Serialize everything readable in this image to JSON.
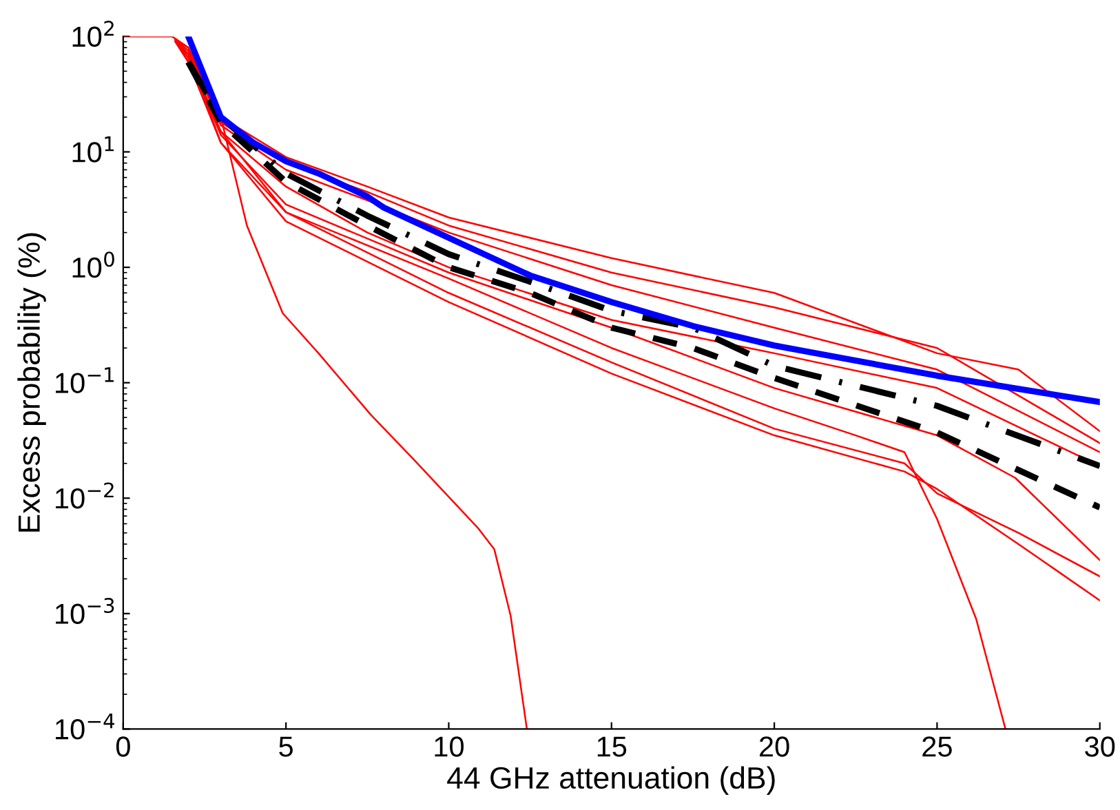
{
  "chart_data": {
    "type": "line",
    "xlabel": "44 GHz attenuation (dB)",
    "ylabel": "Excess probability (%)",
    "log": "y",
    "grid": false,
    "xlim": [
      0,
      30
    ],
    "xticks": [
      0,
      5,
      10,
      15,
      20,
      25,
      30
    ],
    "ylim": [
      0.0001,
      100
    ],
    "yticks": [
      {
        "value": 0.0001,
        "label": "10$^{−4}$"
      },
      {
        "value": 0.001,
        "label": "10$^{−3}$"
      },
      {
        "value": 0.01,
        "label": "10$^{−2}$"
      },
      {
        "value": 0.1,
        "label": "10$^{−1}$"
      },
      {
        "value": 1,
        "label": "10$^{0}$"
      },
      {
        "value": 10,
        "label": "10$^{1}$"
      },
      {
        "value": 100,
        "label": "10$^{2}$"
      }
    ],
    "series": [
      {
        "color": "#ff0000",
        "line_style": "solid",
        "x": [
          0,
          1.5,
          2,
          3,
          5,
          7.5,
          10,
          15,
          20,
          25,
          27.5,
          30
        ],
        "values": [
          100,
          100,
          80,
          20,
          9,
          5,
          2.7,
          1.2,
          0.6,
          0.18,
          0.13,
          0.038
        ]
      },
      {
        "color": "#ff0000",
        "line_style": "solid",
        "x": [
          1.6,
          2,
          3,
          5,
          7.5,
          10,
          15,
          20,
          25,
          30
        ],
        "values": [
          95,
          80,
          18,
          8,
          4.5,
          2.3,
          0.9,
          0.45,
          0.2,
          0.03
        ]
      },
      {
        "color": "#ff0000",
        "line_style": "solid",
        "x": [
          1.7,
          2,
          3,
          5,
          7.5,
          10,
          15,
          20,
          25,
          30
        ],
        "values": [
          90,
          75,
          17,
          7,
          3.8,
          2,
          0.7,
          0.3,
          0.13,
          0.025
        ]
      },
      {
        "color": "#ff0000",
        "line_style": "solid",
        "x": [
          1.6,
          2,
          3,
          5,
          7.5,
          10,
          15,
          20,
          25,
          30
        ],
        "values": [
          92,
          70,
          15,
          5,
          2,
          1,
          0.35,
          0.18,
          0.09,
          0.019
        ]
      },
      {
        "color": "#ff0000",
        "line_style": "solid",
        "x": [
          1.7,
          2,
          3,
          5,
          10,
          15,
          20,
          22.5,
          24,
          25,
          26.2,
          27.1
        ],
        "values": [
          88,
          70,
          12,
          3,
          0.8,
          0.2,
          0.06,
          0.035,
          0.025,
          0.0066,
          0.0009,
          0.0001
        ]
      },
      {
        "color": "#ff0000",
        "line_style": "solid",
        "x": [
          1.6,
          2,
          3,
          3.8,
          4.9,
          6,
          7.6,
          8.9,
          10.9,
          11.4,
          11.9,
          12.4
        ],
        "values": [
          94,
          70,
          20,
          2.3,
          0.4,
          0.18,
          0.053,
          0.022,
          0.0055,
          0.0036,
          0.00096,
          0.0001
        ]
      },
      {
        "color": "#ff0000",
        "line_style": "solid",
        "x": [
          1.7,
          2,
          3,
          5,
          10,
          15,
          20,
          24,
          25,
          27.5,
          30
        ],
        "values": [
          85,
          60,
          15,
          3,
          0.6,
          0.15,
          0.04,
          0.02,
          0.011,
          0.005,
          0.0021
        ]
      },
      {
        "color": "#ff0000",
        "line_style": "solid",
        "x": [
          1.6,
          2,
          3,
          5,
          10,
          15,
          20,
          24,
          25,
          27.5,
          30
        ],
        "values": [
          90,
          60,
          12,
          2.5,
          0.5,
          0.12,
          0.035,
          0.017,
          0.012,
          0.004,
          0.0013
        ]
      },
      {
        "color": "#ff0000",
        "line_style": "solid",
        "x": [
          1.7,
          2,
          3,
          5,
          10,
          15,
          20,
          25,
          27.4,
          30
        ],
        "values": [
          86,
          65,
          14,
          3.5,
          0.9,
          0.3,
          0.09,
          0.035,
          0.015,
          0.0029
        ]
      },
      {
        "color": "#000000",
        "line_style": "dashdot",
        "x": [
          2,
          3,
          5,
          7.5,
          10,
          12.5,
          15,
          17.5,
          20,
          25,
          30
        ],
        "values": [
          60,
          20,
          6.5,
          2.8,
          1.3,
          0.75,
          0.42,
          0.3,
          0.14,
          0.063,
          0.019
        ]
      },
      {
        "color": "#000000",
        "line_style": "dashed",
        "x": [
          2,
          3,
          5,
          7.5,
          10,
          12.5,
          15,
          17.5,
          20,
          25,
          30
        ],
        "values": [
          60,
          18,
          5.5,
          2.3,
          1.0,
          0.6,
          0.3,
          0.2,
          0.11,
          0.037,
          0.0083
        ]
      },
      {
        "color": "#0000ff",
        "line_style": "solid",
        "x": [
          2,
          3,
          4,
          5,
          6,
          7.5,
          8,
          10,
          12.5,
          15,
          17.5,
          20,
          25,
          30
        ],
        "values": [
          100,
          20,
          12,
          8.3,
          6.5,
          4.1,
          3.3,
          1.8,
          0.85,
          0.5,
          0.31,
          0.21,
          0.115,
          0.068
        ]
      }
    ]
  }
}
